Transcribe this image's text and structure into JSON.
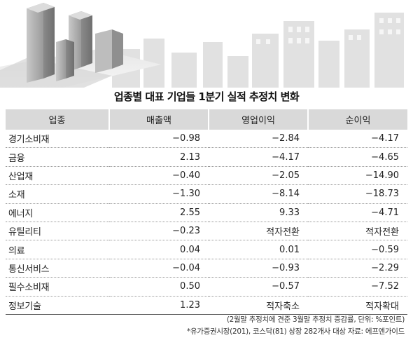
{
  "title": "업종별 대표 기업들 1분기 실적 추정치 변화",
  "chart_data": {
    "type": "table",
    "columns": [
      "업종",
      "매출액",
      "영업이익",
      "순이익"
    ],
    "rows": [
      [
        "경기소비재",
        "−0.98",
        "−2.84",
        "−4.17"
      ],
      [
        "금융",
        "2.13",
        "−4.17",
        "−4.65"
      ],
      [
        "산업재",
        "−0.40",
        "−2.05",
        "−14.90"
      ],
      [
        "소재",
        "−1.30",
        "−8.14",
        "−18.73"
      ],
      [
        "에너지",
        "2.55",
        "9.33",
        "−4.71"
      ],
      [
        "유틸리티",
        "−0.23",
        "적자전환",
        "적자전환"
      ],
      [
        "의료",
        "0.04",
        "0.01",
        "−0.59"
      ],
      [
        "통신서비스",
        "−0.04",
        "−0.93",
        "−2.29"
      ],
      [
        "필수소비재",
        "0.50",
        "−0.57",
        "−7.52"
      ],
      [
        "정보기술",
        "1.23",
        "적자축소",
        "적자확대"
      ]
    ],
    "notes": [
      "(2월말 추정치에 견준 3월말 추정치 증감률, 단위: %포인트)",
      "*유가증권시장(201), 코스닥(81) 상장 282개사 대상   자료: 에프엔가이드"
    ]
  },
  "colors": {
    "header_bg": "#d9d9d9",
    "row_divider": "#9a9a9a",
    "building_gray": "#b8b8b8"
  }
}
